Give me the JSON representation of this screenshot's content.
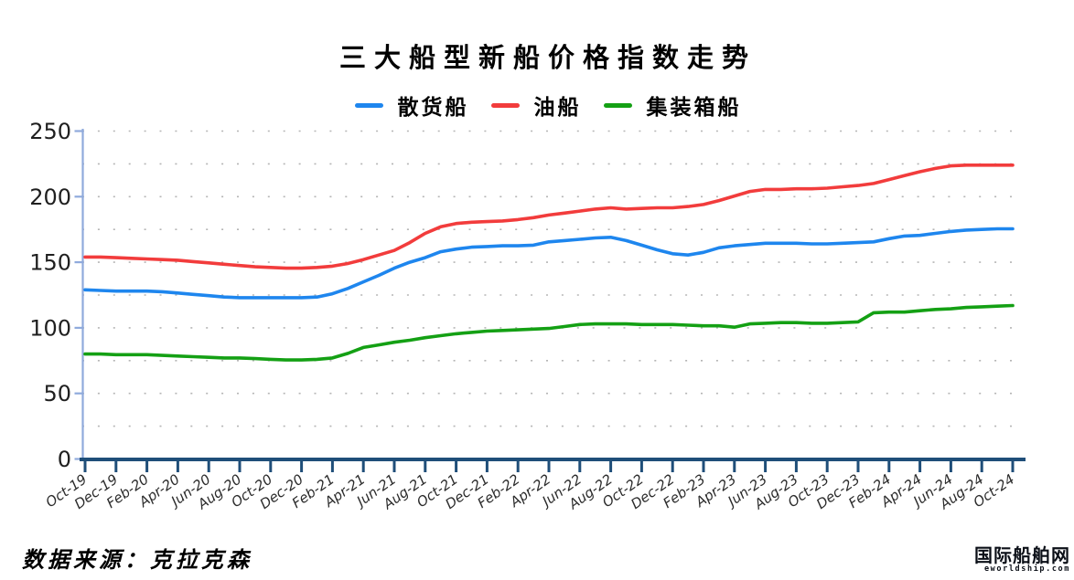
{
  "page": {
    "title": "三大船型新船价格指数走势",
    "source_note": "数据来源：克拉克森",
    "watermark": {
      "name_cn": "国际船舶网",
      "domain": "eworldship.com"
    }
  },
  "chart_data": {
    "type": "line",
    "title": "三大船型新船价格指数走势",
    "legend_position": "top-center",
    "x_tick_labels": [
      "Oct-19",
      "Dec-19",
      "Feb-20",
      "Apr-20",
      "Jun-20",
      "Aug-20",
      "Oct-20",
      "Dec-20",
      "Feb-21",
      "Apr-21",
      "Jun-21",
      "Aug-21",
      "Oct-21",
      "Dec-21",
      "Feb-22",
      "Apr-22",
      "Jun-22",
      "Aug-22",
      "Oct-22",
      "Dec-22",
      "Feb-23",
      "Apr-23",
      "Jun-23",
      "Aug-23",
      "Oct-23",
      "Dec-23",
      "Feb-24",
      "Apr-24",
      "Jun-24",
      "Aug-24",
      "Oct-24"
    ],
    "x_resolution": "monthly (2 data points per labeled tick, Oct-19 through Oct-24)",
    "y_ticks": [
      0,
      50,
      100,
      150,
      200,
      250
    ],
    "ylim": [
      0,
      250
    ],
    "grid": "dotted horizontal lines every 25 units",
    "axis_colors": {
      "x_axis": "#1F4E79",
      "y_axis": "#8FAADC",
      "grid": "#b5b5b5"
    },
    "series": [
      {
        "name": "散货船",
        "color": "#1E86EE",
        "values": [
          129,
          128.5,
          128,
          128,
          128,
          127.5,
          126.5,
          125.5,
          124.5,
          123.5,
          123,
          123,
          123,
          123,
          123,
          123.5,
          126,
          130,
          135,
          140,
          145.5,
          150,
          153.5,
          158,
          160,
          161.5,
          162,
          162.5,
          162.5,
          163,
          165.5,
          166.5,
          167.5,
          168.5,
          169,
          166.5,
          163,
          159.5,
          156.5,
          155.5,
          157.5,
          161,
          162.5,
          163.5,
          164.5,
          164.5,
          164.5,
          164,
          164,
          164.5,
          165,
          165.5,
          168,
          170,
          170.5,
          172,
          173.5,
          174.5,
          175,
          175.5,
          175.5
        ]
      },
      {
        "name": "油船",
        "color": "#F23C3C",
        "values": [
          154,
          154,
          153.5,
          153,
          152.5,
          152,
          151.5,
          150.5,
          149.5,
          148.5,
          147.5,
          146.5,
          146,
          145.5,
          145.5,
          146,
          147,
          149,
          152,
          155.5,
          159,
          165,
          172,
          177,
          179.5,
          180.5,
          181,
          181.5,
          182.5,
          184,
          186,
          187.5,
          189,
          190.5,
          191.5,
          190.5,
          191,
          191.5,
          191.5,
          192.5,
          194,
          197,
          200.5,
          204,
          205.5,
          205.5,
          206,
          206,
          206.5,
          207.5,
          208.5,
          210,
          213,
          216,
          219,
          221.5,
          223.5,
          224,
          224,
          224,
          224
        ]
      },
      {
        "name": "集装箱船",
        "color": "#14A014",
        "values": [
          80,
          80,
          79.5,
          79.5,
          79.5,
          79,
          78.5,
          78,
          77.5,
          77,
          77,
          76.5,
          76,
          75.5,
          75.5,
          76,
          77,
          80.5,
          85,
          87,
          89,
          90.5,
          92.5,
          94,
          95.5,
          96.5,
          97.5,
          98,
          98.5,
          99,
          99.5,
          101,
          102.5,
          103,
          103,
          103,
          102.5,
          102.5,
          102.5,
          102,
          101.5,
          101.5,
          100.5,
          103,
          103.5,
          104,
          104,
          103.5,
          103.5,
          104,
          104.5,
          111.5,
          112,
          112,
          113,
          114,
          114.5,
          115.5,
          116,
          116.5,
          117
        ]
      }
    ]
  }
}
